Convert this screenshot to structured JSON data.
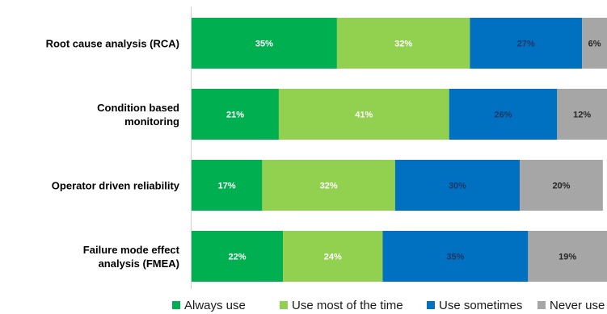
{
  "chart_data": {
    "type": "bar",
    "orientation": "horizontal",
    "stacked": true,
    "categories": [
      "Root cause analysis (RCA)",
      "Condition based monitoring",
      "Operator driven reliability",
      "Failure mode effect analysis (FMEA)"
    ],
    "series": [
      {
        "name": "Always use",
        "color": "#00b050",
        "label_color": "#ffffff",
        "values": [
          35,
          21,
          17,
          22
        ]
      },
      {
        "name": "Use most of the time",
        "color": "#92d050",
        "label_color": "#ffffff",
        "values": [
          32,
          41,
          32,
          24
        ]
      },
      {
        "name": "Use sometimes",
        "color": "#0070c0",
        "label_color": "#1f3864",
        "values": [
          27,
          26,
          30,
          35
        ]
      },
      {
        "name": "Never use",
        "color": "#a6a6a6",
        "label_color": "#262626",
        "values": [
          6,
          12,
          20,
          19
        ]
      }
    ],
    "value_suffix": "%",
    "xlim": [
      0,
      100
    ],
    "grid": false,
    "legend_position": "bottom-right"
  }
}
